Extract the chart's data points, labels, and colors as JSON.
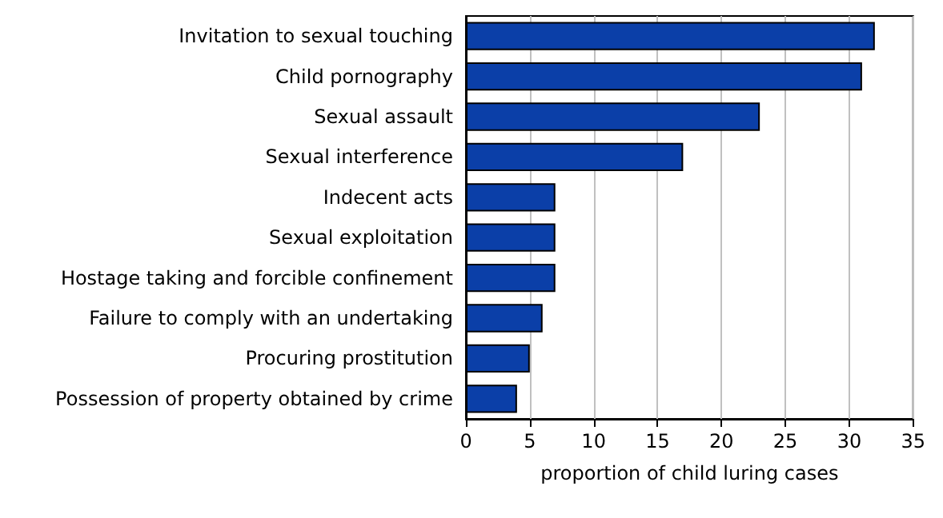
{
  "chart_data": {
    "type": "bar",
    "orientation": "horizontal",
    "xlabel": "proportion of child luring cases",
    "categories": [
      "Invitation to sexual touching",
      "Child pornography",
      "Sexual assault",
      "Sexual interference",
      "Indecent acts",
      "Sexual exploitation",
      "Hostage taking and forcible confinement",
      "Failure to comply with an undertaking",
      "Procuring prostitution",
      "Possession of property obtained by crime"
    ],
    "values": [
      32,
      31,
      23,
      17,
      7,
      7,
      7,
      6,
      5,
      4
    ],
    "color": "#0b3fa8",
    "xlim": [
      0,
      35
    ],
    "xticks": [
      0,
      5,
      10,
      15,
      20,
      25,
      30,
      35
    ],
    "grid": "x"
  }
}
